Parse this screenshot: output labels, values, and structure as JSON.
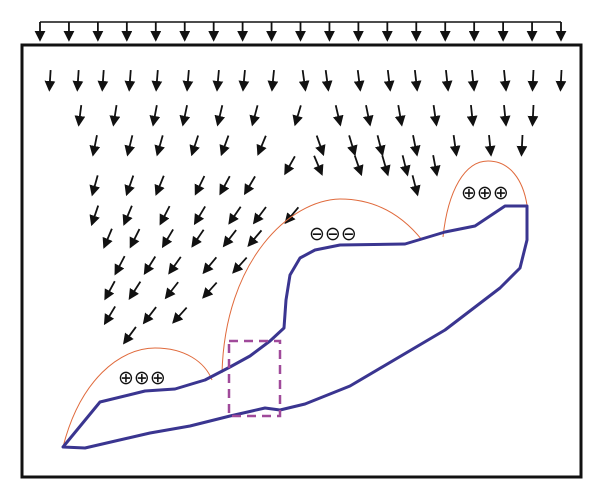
{
  "diagram": {
    "colors": {
      "frame": "#111111",
      "arrow": "#111111",
      "body_outline": "#3a3590",
      "field_boundary": "#e06a3c",
      "highlight_box": "#a04a9a"
    },
    "charges": [
      {
        "region": "lower-left",
        "symbols": "⊕⊕⊕"
      },
      {
        "region": "middle",
        "symbols": "⊖⊖⊖"
      },
      {
        "region": "upper-right",
        "symbols": "⊕⊕⊕"
      }
    ],
    "top_load_arrows": 19
  }
}
